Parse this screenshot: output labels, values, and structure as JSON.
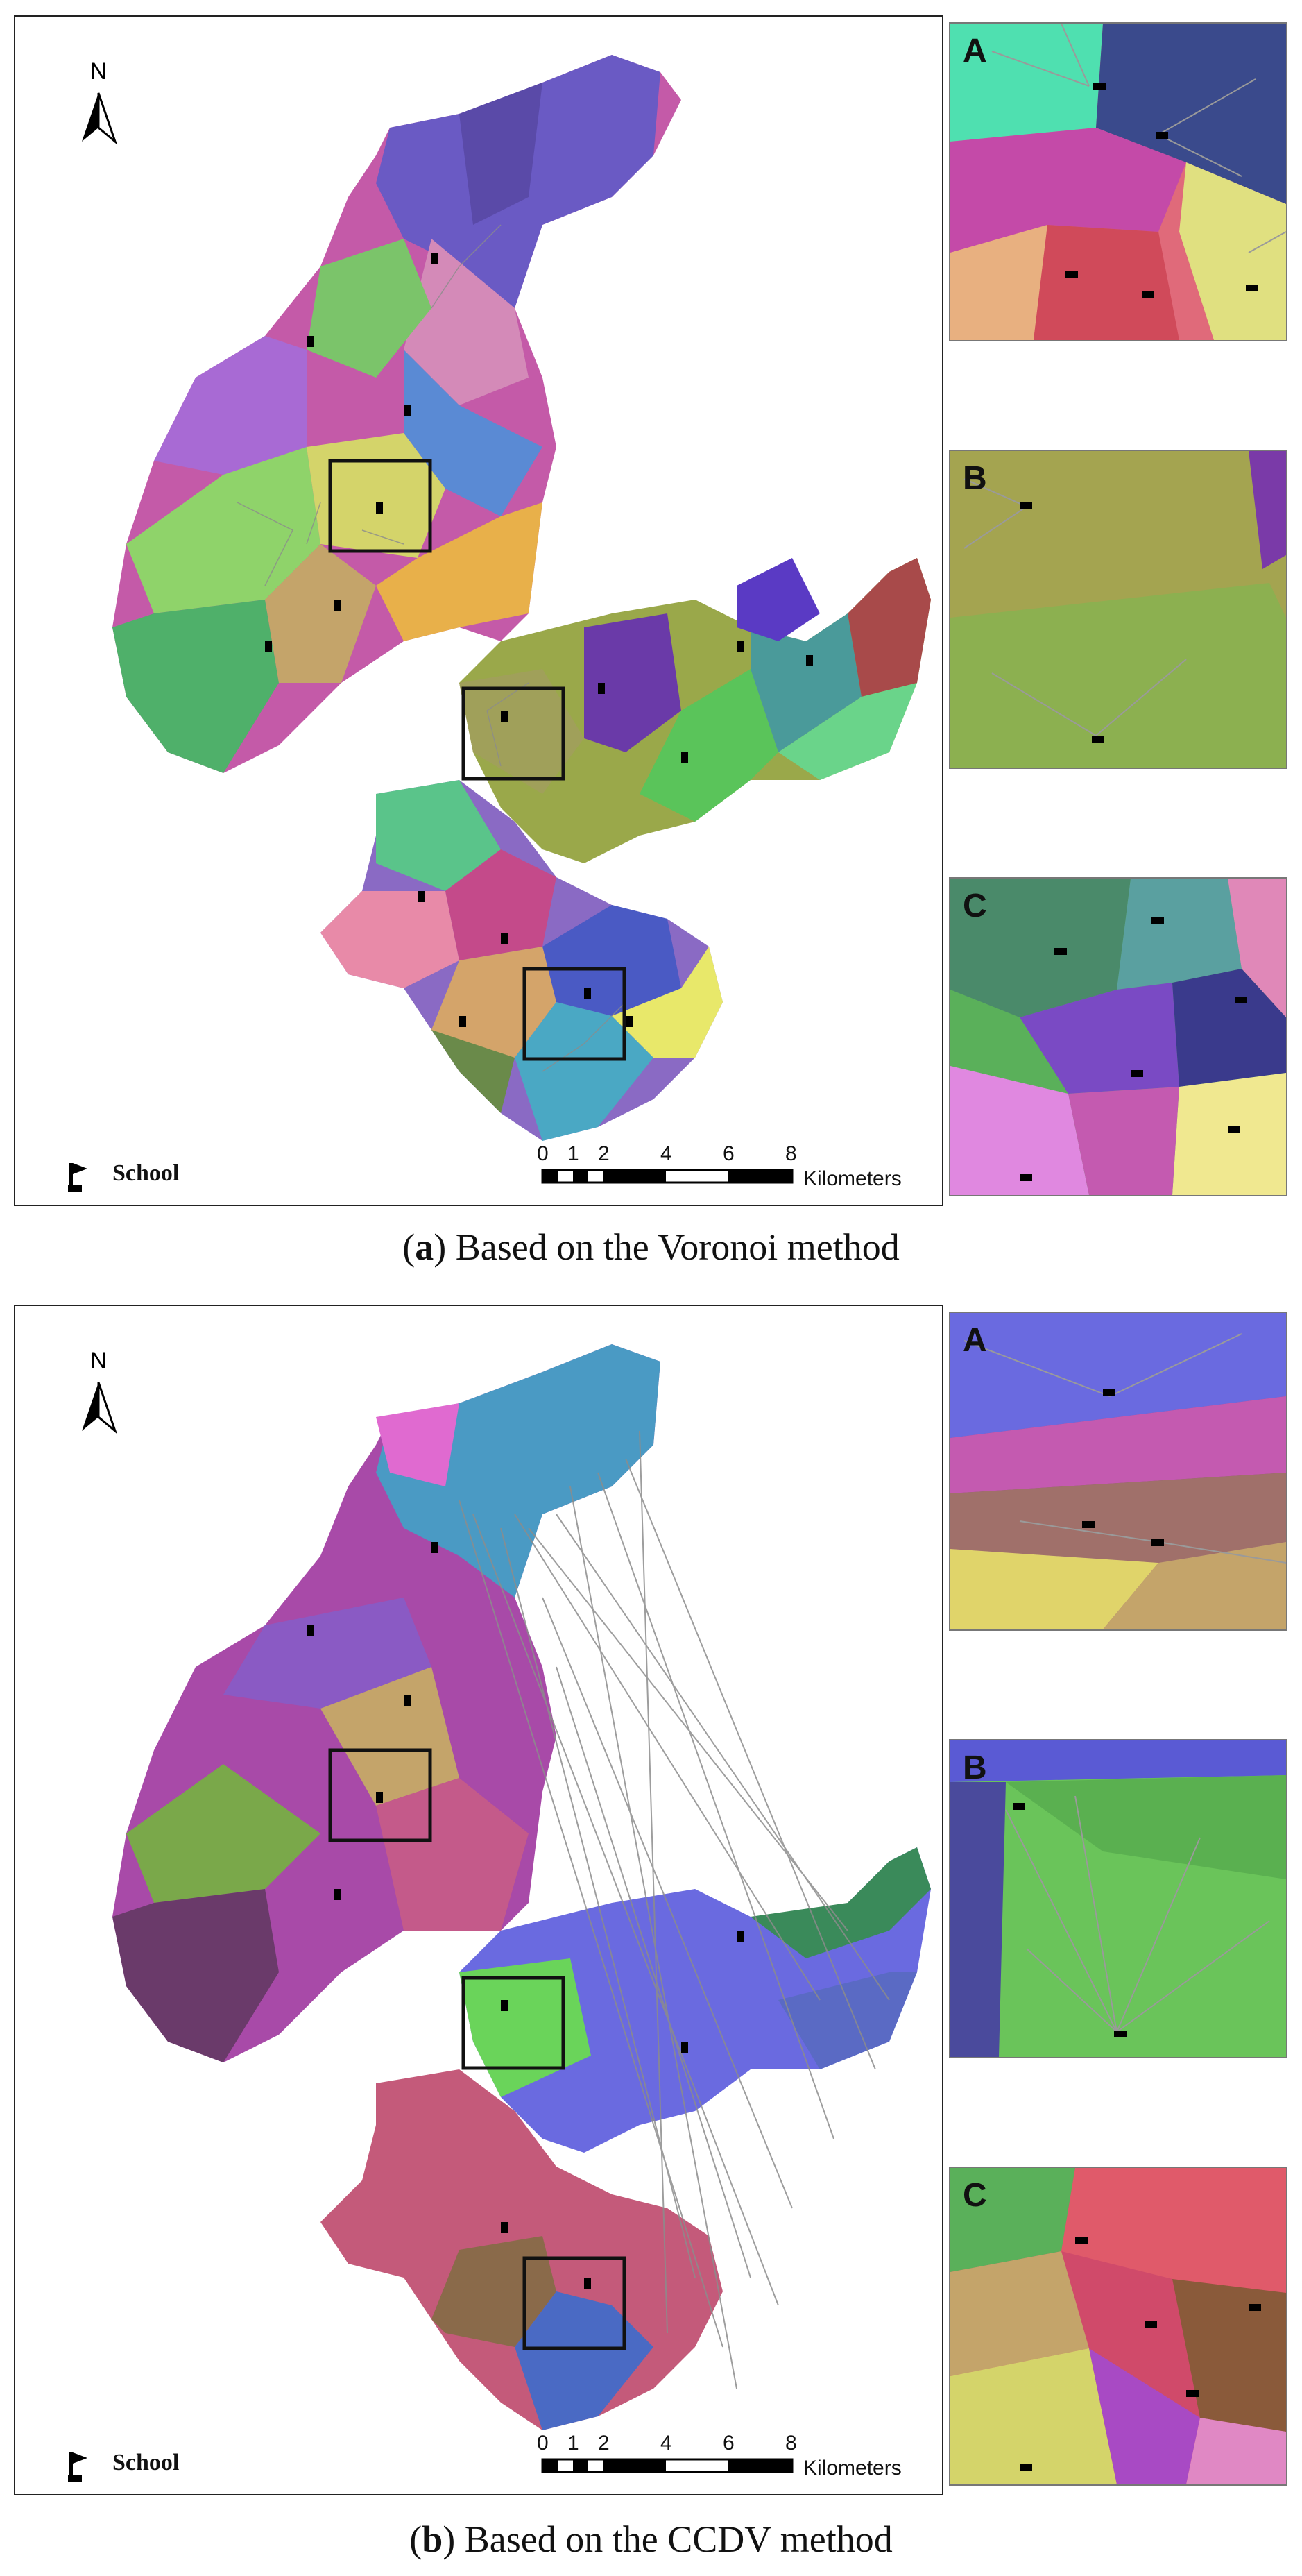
{
  "panel_a": {
    "caption_letter": "a",
    "caption_text": "Based on the Voronoi method",
    "north_label": "N",
    "legend_label": "School",
    "scale_ticks": [
      "0",
      "1",
      "2",
      "4",
      "6",
      "8"
    ],
    "scale_unit": "Kilometers",
    "insets": [
      "A",
      "B",
      "C"
    ]
  },
  "panel_b": {
    "caption_letter": "b",
    "caption_text": "Based on the CCDV method",
    "north_label": "N",
    "legend_label": "School",
    "scale_ticks": [
      "0",
      "1",
      "2",
      "4",
      "6",
      "8"
    ],
    "scale_unit": "Kilometers",
    "insets": [
      "A",
      "B",
      "C"
    ]
  },
  "colors": {
    "frame": "#222222",
    "link_lines": "#8c8c8c",
    "palette": [
      "#7b5bc4",
      "#4a9fd0",
      "#e86a8e",
      "#8fd36a",
      "#c45aa8",
      "#d4d46a",
      "#5ac48a",
      "#3b5a9c",
      "#e88a5a",
      "#a86ad4",
      "#6ad4c4",
      "#b04a4a",
      "#6a8a3a",
      "#d46ab0"
    ]
  },
  "icons": {
    "school": "school-flag-icon",
    "north": "north-arrow-icon"
  }
}
